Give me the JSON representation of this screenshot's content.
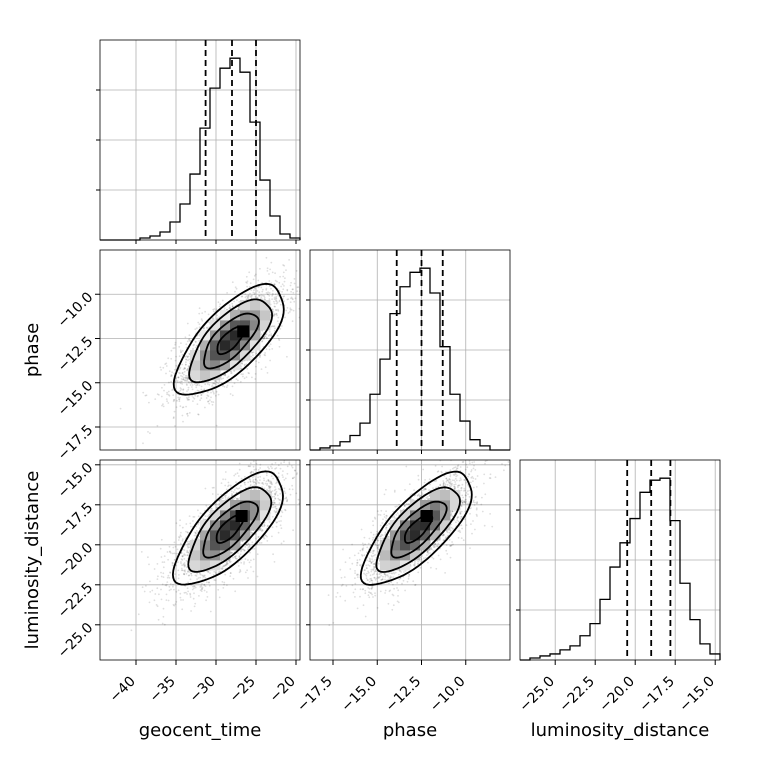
{
  "chart_data": {
    "type": "corner",
    "parameters": [
      {
        "name": "geocent_time",
        "range": [
          -44.5,
          -19.5
        ],
        "ticks": [
          -40,
          -35,
          -30,
          -25,
          -20
        ],
        "tick_labels": [
          "−40",
          "−35",
          "−30",
          "−25",
          "−20"
        ],
        "quantiles": [
          -31.3,
          -28.0,
          -25.0
        ]
      },
      {
        "name": "phase",
        "range": [
          -18.8,
          -7.5
        ],
        "ticks": [
          -17.5,
          -15.0,
          -12.5,
          -10.0
        ],
        "tick_labels": [
          "−17.5",
          "−15.0",
          "−12.5",
          "−10.0"
        ],
        "quantiles": [
          -13.9,
          -12.5,
          -11.3
        ]
      },
      {
        "name": "luminosity_distance",
        "range": [
          -27.2,
          -14.7
        ],
        "ticks": [
          -25.0,
          -22.5,
          -20.0,
          -17.5,
          -15.0
        ],
        "tick_labels": [
          "−25.0",
          "−22.5",
          "−20.0",
          "−17.5",
          "−15.0"
        ],
        "quantiles": [
          -20.5,
          -19.0,
          -17.8
        ]
      }
    ],
    "histograms": [
      {
        "param": "geocent_time",
        "bin_edges": [
          -44.5,
          -43.25,
          -42.0,
          -40.75,
          -39.5,
          -38.25,
          -37.0,
          -35.75,
          -34.5,
          -33.25,
          -32.0,
          -30.75,
          -29.5,
          -28.25,
          -27.0,
          -25.75,
          -24.5,
          -23.25,
          -22.0,
          -20.75,
          -19.5
        ],
        "counts": [
          0,
          0,
          0,
          0,
          1,
          2,
          4,
          9,
          18,
          33,
          56,
          76,
          86,
          91,
          84,
          59,
          30,
          12,
          3,
          1
        ]
      },
      {
        "param": "phase",
        "bin_edges": [
          -18.8,
          -18.235,
          -17.67,
          -17.105,
          -16.54,
          -15.975,
          -15.41,
          -14.845,
          -14.28,
          -13.715,
          -13.15,
          -12.585,
          -12.02,
          -11.455,
          -10.89,
          -10.325,
          -9.76,
          -9.195,
          -8.63,
          -8.065,
          -7.5
        ],
        "counts": [
          0,
          1,
          2,
          4,
          7,
          13,
          27,
          44,
          66,
          79,
          86,
          88,
          76,
          50,
          27,
          14,
          5,
          2,
          0,
          0
        ]
      },
      {
        "param": "luminosity_distance",
        "bin_edges": [
          -27.2,
          -26.575,
          -25.95,
          -25.325,
          -24.7,
          -24.075,
          -23.45,
          -22.825,
          -22.2,
          -21.575,
          -20.95,
          -20.325,
          -19.7,
          -19.075,
          -18.45,
          -17.825,
          -17.2,
          -16.575,
          -15.95,
          -15.325,
          -14.7
        ],
        "counts": [
          0,
          1,
          2,
          3,
          5,
          7,
          12,
          18,
          30,
          46,
          58,
          70,
          83,
          89,
          90,
          69,
          38,
          20,
          8,
          3
        ]
      }
    ],
    "joint_2d": [
      {
        "x": "geocent_time",
        "y": "phase",
        "mean": [
          -28.2,
          -12.6
        ],
        "std": [
          3.4,
          1.55
        ],
        "correlation": 0.7,
        "peak": [
          -26.6,
          -12.1
        ]
      },
      {
        "x": "geocent_time",
        "y": "luminosity_distance",
        "mean": [
          -28.3,
          -19.0
        ],
        "std": [
          3.4,
          1.75
        ],
        "correlation": 0.72,
        "peak": [
          -26.8,
          -18.2
        ]
      },
      {
        "x": "phase",
        "y": "luminosity_distance",
        "mean": [
          -12.7,
          -19.0
        ],
        "std": [
          1.55,
          1.75
        ],
        "correlation": 0.74,
        "peak": [
          -12.2,
          -18.2
        ]
      }
    ],
    "contour_levels_sigma": [
      0.5,
      1.0,
      1.5,
      2.0
    ],
    "grid": true
  },
  "labels": {
    "row_1_y": "phase",
    "row_2_y": "luminosity_distance",
    "col_0_x": "geocent_time",
    "col_1_x": "phase",
    "col_2_x": "luminosity_distance"
  }
}
